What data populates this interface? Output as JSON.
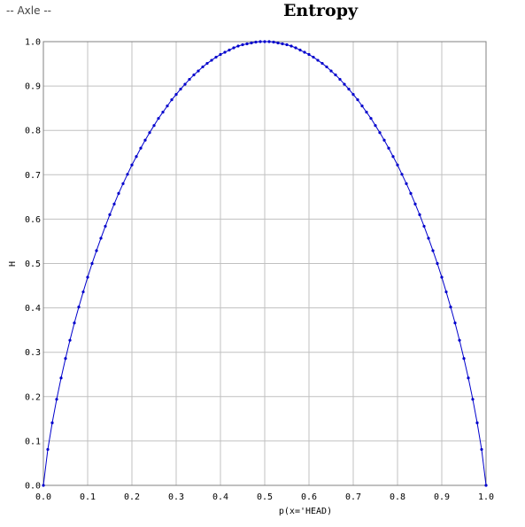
{
  "window": {
    "app_label": "-- Axle --"
  },
  "chart_data": {
    "type": "line",
    "title": "Entropy",
    "xlabel": "p(x='HEAD)",
    "ylabel": "H",
    "xlim": [
      0.0,
      1.0
    ],
    "ylim": [
      0.0,
      1.0
    ],
    "x_ticks": [
      "0.0",
      "0.1",
      "0.2",
      "0.3",
      "0.4",
      "0.5",
      "0.6",
      "0.7",
      "0.8",
      "0.9",
      "1.0"
    ],
    "y_ticks": [
      "0.0",
      "0.1",
      "0.2",
      "0.3",
      "0.4",
      "0.5",
      "0.6",
      "0.7",
      "0.8",
      "0.9",
      "1.0"
    ],
    "grid": true,
    "markers": true,
    "colors": {
      "series": "#0000cc",
      "grid": "#c0c0c0",
      "frame": "#808080"
    },
    "series": [
      {
        "x": [
          0.0,
          0.01,
          0.02,
          0.03,
          0.04,
          0.05,
          0.06,
          0.07,
          0.08,
          0.09,
          0.1,
          0.11,
          0.12,
          0.13,
          0.14,
          0.15,
          0.16,
          0.17,
          0.18,
          0.19,
          0.2,
          0.21,
          0.22,
          0.23,
          0.24,
          0.25,
          0.26,
          0.27,
          0.28,
          0.29,
          0.3,
          0.31,
          0.32,
          0.33,
          0.34,
          0.35,
          0.36,
          0.37,
          0.38,
          0.39,
          0.4,
          0.41,
          0.42,
          0.43,
          0.44,
          0.45,
          0.46,
          0.47,
          0.48,
          0.49,
          0.5,
          0.51,
          0.52,
          0.53,
          0.54,
          0.55,
          0.56,
          0.57,
          0.58,
          0.59,
          0.6,
          0.61,
          0.62,
          0.63,
          0.64,
          0.65,
          0.66,
          0.67,
          0.68,
          0.69,
          0.7,
          0.71,
          0.72,
          0.73,
          0.74,
          0.75,
          0.76,
          0.77,
          0.78,
          0.79,
          0.8,
          0.81,
          0.82,
          0.83,
          0.84,
          0.85,
          0.86,
          0.87,
          0.88,
          0.89,
          0.9,
          0.91,
          0.92,
          0.93,
          0.94,
          0.95,
          0.96,
          0.97,
          0.98,
          0.99,
          1.0
        ],
        "y": [
          0.0,
          0.081,
          0.141,
          0.194,
          0.242,
          0.286,
          0.327,
          0.366,
          0.402,
          0.436,
          0.469,
          0.5,
          0.529,
          0.557,
          0.584,
          0.61,
          0.634,
          0.658,
          0.68,
          0.701,
          0.722,
          0.741,
          0.76,
          0.778,
          0.795,
          0.811,
          0.827,
          0.841,
          0.855,
          0.869,
          0.881,
          0.893,
          0.904,
          0.915,
          0.925,
          0.934,
          0.943,
          0.951,
          0.958,
          0.965,
          0.971,
          0.976,
          0.981,
          0.986,
          0.99,
          0.993,
          0.995,
          0.997,
          0.999,
          1.0,
          1.0,
          1.0,
          0.999,
          0.997,
          0.995,
          0.993,
          0.99,
          0.986,
          0.981,
          0.976,
          0.971,
          0.965,
          0.958,
          0.951,
          0.943,
          0.934,
          0.925,
          0.915,
          0.904,
          0.893,
          0.881,
          0.869,
          0.855,
          0.841,
          0.827,
          0.811,
          0.795,
          0.778,
          0.76,
          0.741,
          0.722,
          0.701,
          0.68,
          0.658,
          0.634,
          0.61,
          0.584,
          0.557,
          0.529,
          0.5,
          0.469,
          0.436,
          0.402,
          0.366,
          0.327,
          0.286,
          0.242,
          0.194,
          0.141,
          0.081,
          0.0
        ]
      }
    ]
  }
}
